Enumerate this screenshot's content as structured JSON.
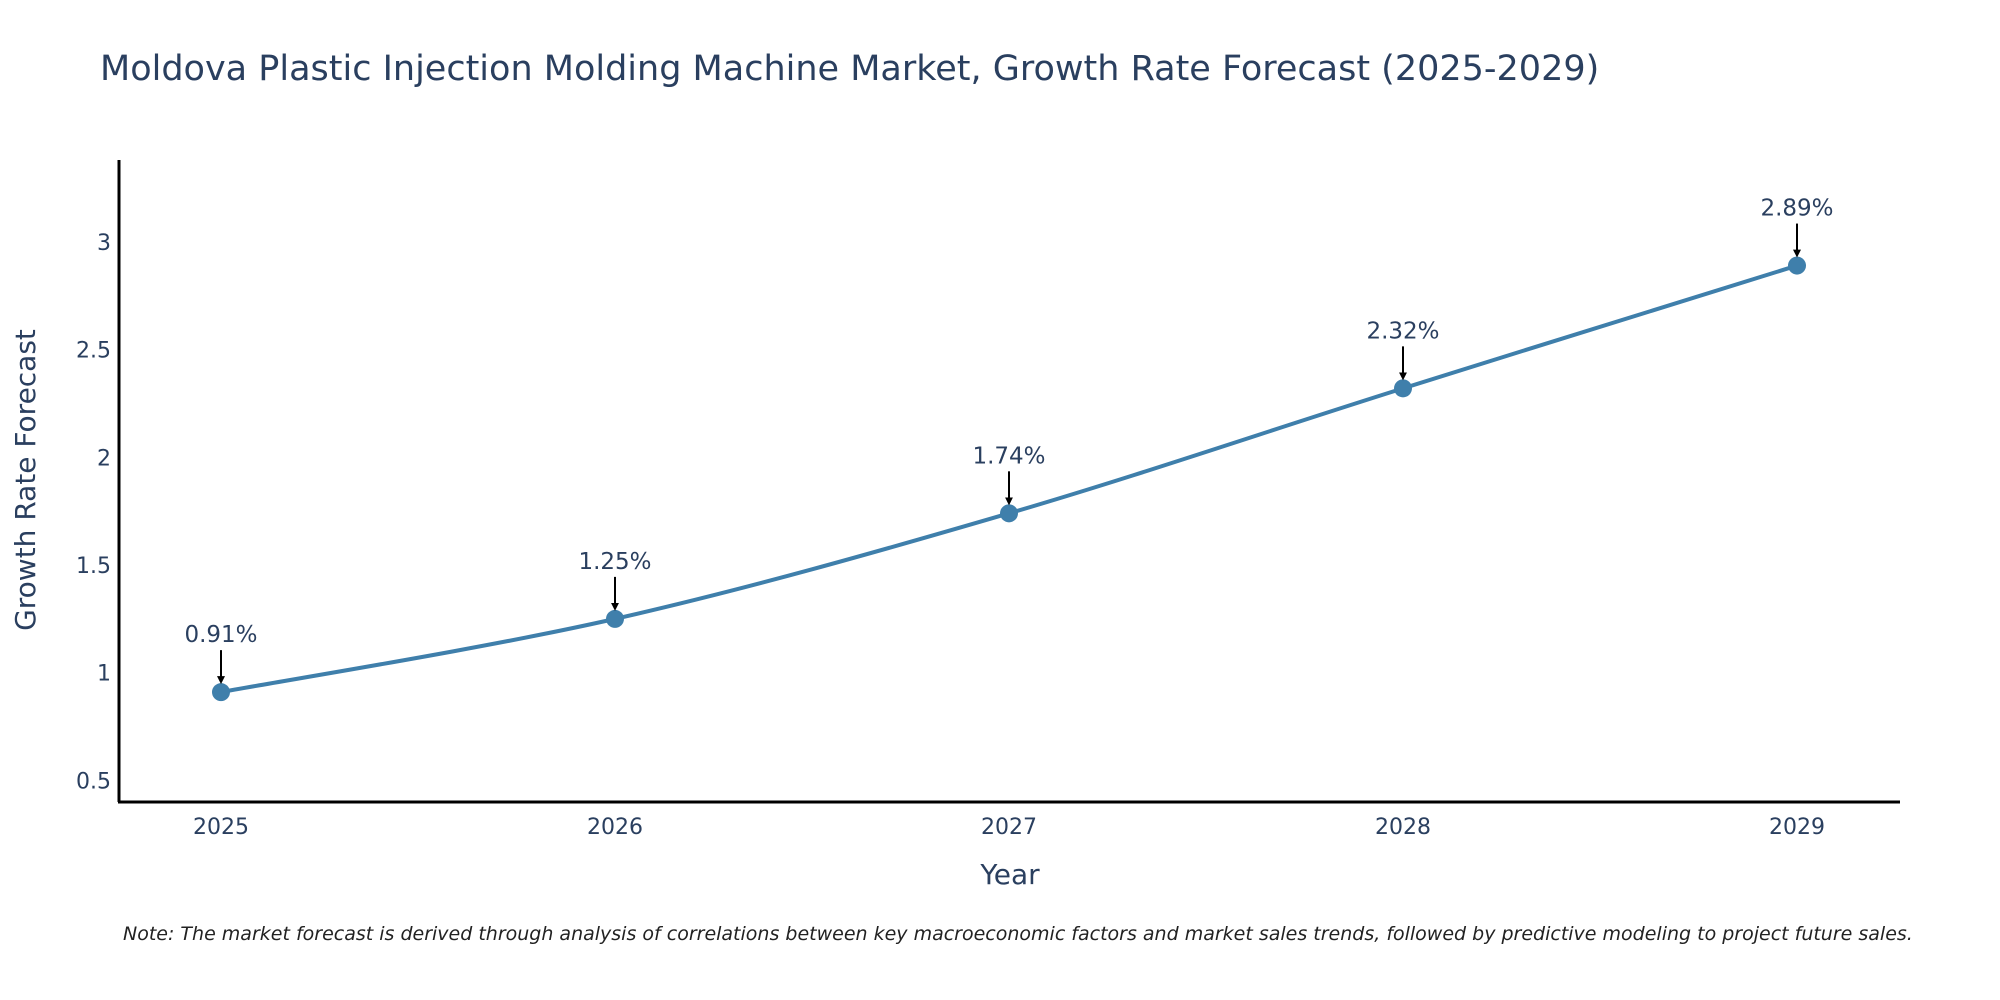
{
  "chart_data": {
    "type": "line",
    "title": "Moldova Plastic Injection Molding Machine Market, Growth Rate Forecast (2025-2029)",
    "xlabel": "Year",
    "ylabel": "Growth Rate Forecast",
    "categories": [
      "2025",
      "2026",
      "2027",
      "2028",
      "2029"
    ],
    "series": [
      {
        "name": "Growth Rate Forecast",
        "values": [
          0.91,
          1.25,
          1.74,
          2.32,
          2.89
        ],
        "labels": [
          "0.91%",
          "1.25%",
          "1.74%",
          "2.32%",
          "2.89%"
        ]
      }
    ],
    "ylim": [
      0.4,
      3.38
    ],
    "yticks": [
      "0.5",
      "1",
      "1.5",
      "2",
      "2.5",
      "3"
    ],
    "ytick_values": [
      0.5,
      1,
      1.5,
      2,
      2.5,
      3
    ],
    "grid": false,
    "legend": "none",
    "note": "Note: The market forecast is derived through analysis of correlations between key macroeconomic factors and market sales trends, followed by predictive modeling to project future sales.",
    "colors": {
      "line": "#3f7fab",
      "marker": "#3f7fab",
      "axis": "#000000",
      "arrow": "#000000"
    }
  }
}
